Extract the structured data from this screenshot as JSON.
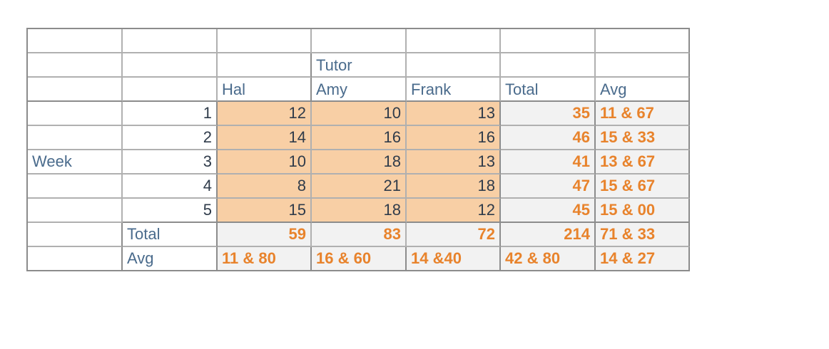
{
  "header": {
    "group_label": "Tutor",
    "row_label": "Week"
  },
  "columns": [
    "Hal",
    "Amy",
    "Frank",
    "Total",
    "Avg"
  ],
  "rows": [
    {
      "week": "1",
      "values": [
        "12",
        "10",
        "13"
      ],
      "total": "35",
      "avg": "11 & 67"
    },
    {
      "week": "2",
      "values": [
        "14",
        "16",
        "16"
      ],
      "total": "46",
      "avg": "15 & 33"
    },
    {
      "week": "3",
      "values": [
        "10",
        "18",
        "13"
      ],
      "total": "41",
      "avg": "13 & 67"
    },
    {
      "week": "4",
      "values": [
        "8",
        "21",
        "18"
      ],
      "total": "47",
      "avg": "15 & 67"
    },
    {
      "week": "5",
      "values": [
        "15",
        "18",
        "12"
      ],
      "total": "45",
      "avg": "15 & 00"
    }
  ],
  "total_row": {
    "label": "Total",
    "values": [
      "59",
      "83",
      "72"
    ],
    "total": "214",
    "avg": "71 & 33"
  },
  "avg_row": {
    "label": "Avg",
    "values": [
      "11 & 80",
      "16 & 60",
      "14 &40"
    ],
    "total": "42 & 80",
    "avg": "14 & 27"
  }
}
